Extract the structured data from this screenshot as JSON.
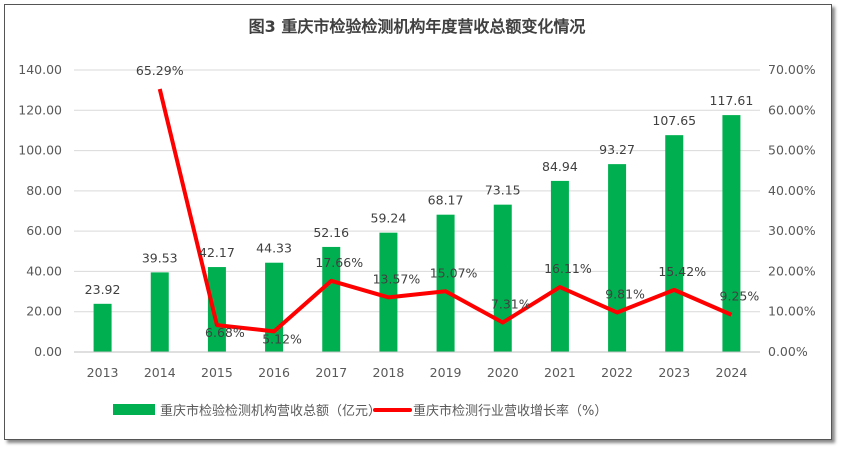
{
  "chart_data": {
    "type": "bar+line",
    "title": "图3 重庆市检验检测机构年度营收总额变化情况",
    "categories": [
      "2013",
      "2014",
      "2015",
      "2016",
      "2017",
      "2018",
      "2019",
      "2020",
      "2021",
      "2022",
      "2023",
      "2024"
    ],
    "series": [
      {
        "name": "重庆市检验检测机构营收总额（亿元）",
        "type": "bar",
        "axis": "left",
        "color": "#00b050",
        "values": [
          23.92,
          39.53,
          42.17,
          44.33,
          52.16,
          59.24,
          68.17,
          73.15,
          84.94,
          93.27,
          107.65,
          117.61
        ],
        "labels": [
          "23.92",
          "39.53",
          "42.17",
          "44.33",
          "52.16",
          "59.24",
          "68.17",
          "73.15",
          "84.94",
          "93.27",
          "107.65",
          "117.61"
        ]
      },
      {
        "name": "重庆市检测行业营收增长率（%）",
        "type": "line",
        "axis": "right",
        "color": "#ff0000",
        "values": [
          null,
          65.29,
          6.68,
          5.12,
          17.66,
          13.57,
          15.07,
          7.31,
          16.11,
          9.81,
          15.42,
          9.25
        ],
        "labels": [
          "",
          "65.29%",
          "6.68%",
          "5.12%",
          "17.66%",
          "13.57%",
          "15.07%",
          "7.31%",
          "16.11%",
          "9.81%",
          "15.42%",
          "9.25%"
        ]
      }
    ],
    "left_axis": {
      "range": [
        0,
        140
      ],
      "ticks": [
        "0.00",
        "20.00",
        "40.00",
        "60.00",
        "80.00",
        "100.00",
        "120.00",
        "140.00"
      ]
    },
    "right_axis": {
      "range": [
        0,
        70
      ],
      "ticks": [
        "0.00%",
        "10.00%",
        "20.00%",
        "30.00%",
        "40.00%",
        "50.00%",
        "60.00%",
        "70.00%"
      ]
    },
    "grid": true,
    "legend": "bottom"
  }
}
